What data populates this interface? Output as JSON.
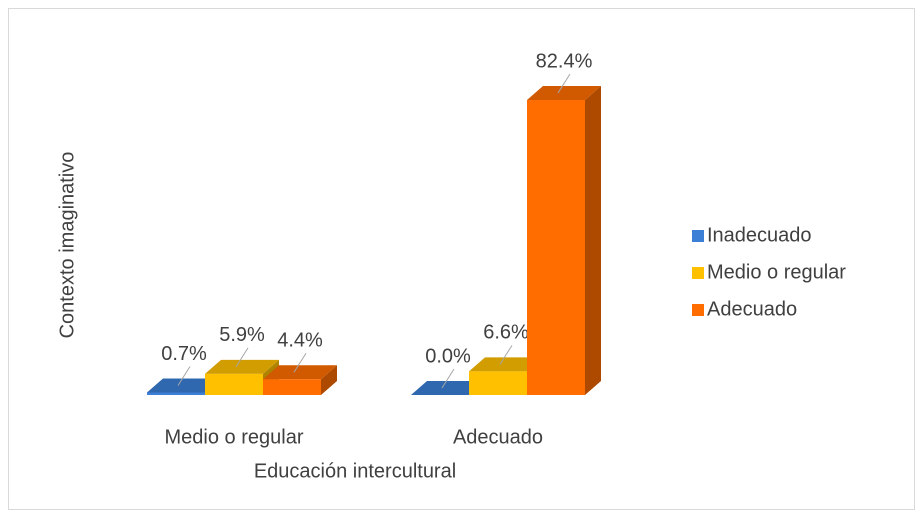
{
  "chart_data": {
    "type": "bar3d",
    "x_label": "Educación intercultural",
    "y_label": "Contexto imaginativo",
    "categories": [
      "Medio o regular",
      "Adecuado"
    ],
    "series": [
      {
        "name": "Inadecuado",
        "color": "#3b7fd6",
        "values": [
          0.7,
          0.0
        ],
        "value_labels": [
          "0.7%",
          "0.0%"
        ]
      },
      {
        "name": "Medio o regular",
        "color": "#ffc000",
        "values": [
          5.9,
          6.6
        ],
        "value_labels": [
          "5.9%",
          "6.6%"
        ]
      },
      {
        "name": "Adecuado",
        "color": "#ff6d00",
        "values": [
          4.4,
          82.4
        ],
        "value_labels": [
          "4.4%",
          "82.4%"
        ]
      }
    ],
    "legend": "right"
  }
}
